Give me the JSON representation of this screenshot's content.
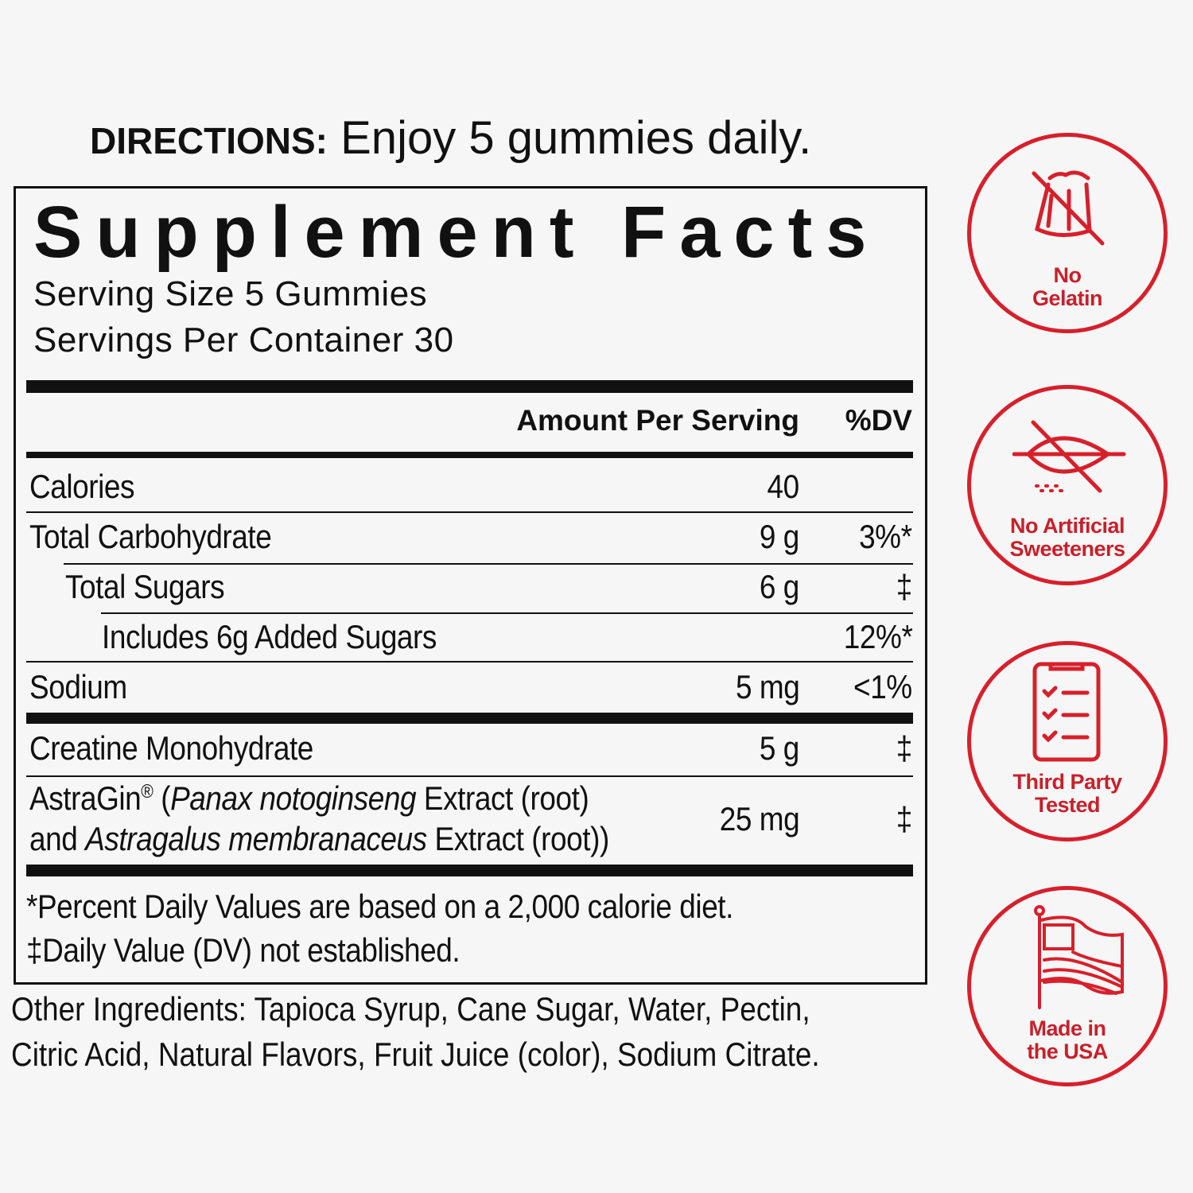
{
  "directions": {
    "label": "DIRECTIONS:",
    "text": "Enjoy 5 gummies daily."
  },
  "facts": {
    "title": "Supplement Facts",
    "serving_size": "Serving Size 5 Gummies",
    "servings_per_container": "Servings Per Container 30",
    "header_amount": "Amount Per Serving",
    "header_dv": "%DV",
    "rows": [
      {
        "name": "Calories",
        "amount": "40",
        "dv": ""
      },
      {
        "name": "Total Carbohydrate",
        "amount": "9 g",
        "dv": "3%*"
      },
      {
        "name": "Total Sugars",
        "amount": "6 g",
        "dv": "‡"
      },
      {
        "name": "Includes 6g Added Sugars",
        "amount": "",
        "dv": "12%*"
      },
      {
        "name": "Sodium",
        "amount": "5 mg",
        "dv": "<1%"
      },
      {
        "name": "Creatine Monohydrate",
        "amount": "5 g",
        "dv": "‡"
      },
      {
        "name_parts": [
          "AstraGin",
          "®",
          " (",
          "Panax notoginseng",
          " Extract (root)",
          "and ",
          "Astragalus membranaceus",
          " Extract (root))"
        ],
        "amount": "25 mg",
        "dv": "‡"
      }
    ],
    "footnote1": "*Percent Daily Values are based on a 2,000 calorie diet.",
    "footnote2": "‡Daily Value (DV) not established."
  },
  "other_ingredients": {
    "line1": "Other Ingredients: Tapioca Syrup, Cane Sugar, Water, Pectin,",
    "line2": "Citric Acid, Natural Flavors, Fruit Juice (color), Sodium Citrate."
  },
  "badges": [
    {
      "icon": "no-gelatin-icon",
      "line1": "No",
      "line2": "Gelatin"
    },
    {
      "icon": "no-artificial-sweeteners-icon",
      "line1": "No Artificial",
      "line2": "Sweeteners"
    },
    {
      "icon": "checklist-icon",
      "line1": "Third Party",
      "line2": "Tested"
    },
    {
      "icon": "usa-flag-icon",
      "line1": "Made in",
      "line2": "the USA"
    }
  ],
  "colors": {
    "accent": "#d6202b",
    "text": "#111111",
    "background": "#f6f6f6"
  }
}
